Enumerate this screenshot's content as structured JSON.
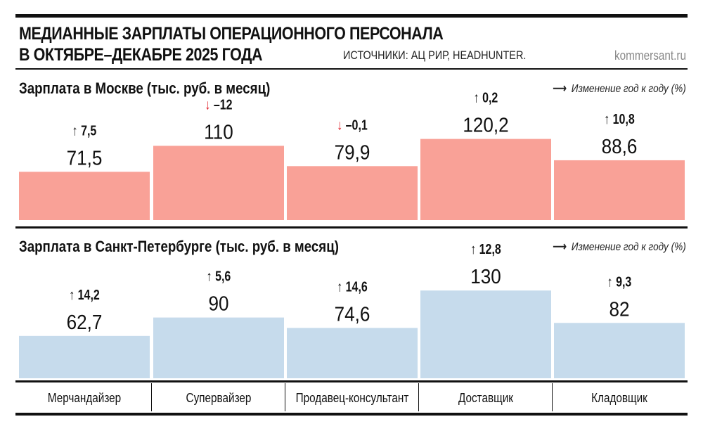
{
  "title_line1": "МЕДИАННЫЕ ЗАРПЛАТЫ ОПЕРАЦИОННОГО ПЕРСОНАЛА",
  "title_line2": "В ОКТЯБРЕ–ДЕКАБРЕ 2025 ГОДА",
  "source": "ИСТОЧНИКИ: АЦ РИР, HEADHUNTER.",
  "brand": "kommersant.ru",
  "legend_label": "Изменение год к году (%)",
  "colors": {
    "moscow": "#f9a197",
    "spb": "#c6dbec",
    "down": "#e0202a",
    "up": "#111111"
  },
  "chart_data": [
    {
      "type": "bar",
      "title": "Зарплата в Москве (тыс. руб. в месяц)",
      "categories": [
        "Мерчандайзер",
        "Супервайзер",
        "Продавец-консультант",
        "Доставщик",
        "Кладовщик"
      ],
      "values": [
        71.5,
        110,
        79.9,
        120.2,
        88.6
      ],
      "value_labels": [
        "71,5",
        "110",
        "79,9",
        "120,2",
        "88,6"
      ],
      "changes": [
        7.5,
        -12,
        -0.1,
        0.2,
        10.8
      ],
      "change_labels": [
        "7,5",
        "–12",
        "–0,1",
        "0,2",
        "10,8"
      ]
    },
    {
      "type": "bar",
      "title": "Зарплата в Санкт-Петербурге (тыс. руб. в месяц)",
      "categories": [
        "Мерчандайзер",
        "Супервайзер",
        "Продавец-консультант",
        "Доставщик",
        "Кладовщик"
      ],
      "values": [
        62.7,
        90,
        74.6,
        130,
        82
      ],
      "value_labels": [
        "62,7",
        "90",
        "74,6",
        "130",
        "82"
      ],
      "changes": [
        14.2,
        5.6,
        14.6,
        12.8,
        9.3
      ],
      "change_labels": [
        "14,2",
        "5,6",
        "14,6",
        "12,8",
        "9,3"
      ]
    }
  ]
}
